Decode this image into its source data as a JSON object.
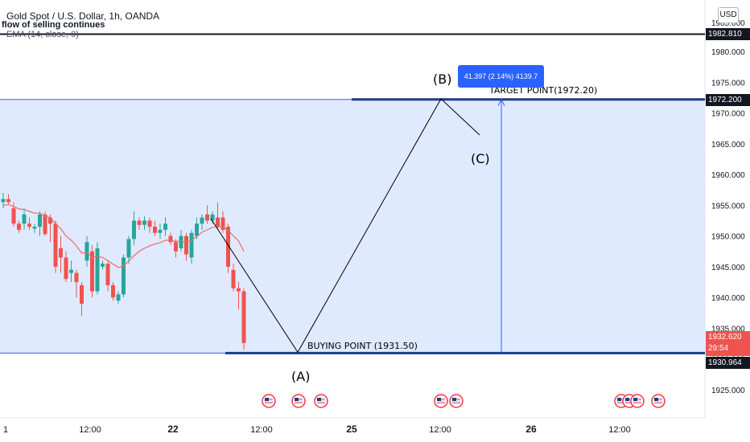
{
  "header": {
    "symbol_line": "Gold Spot / U.S. Dollar, 1h, OANDA",
    "note_line": "flow of selling continues",
    "indicator_line": "EMA (14, close, 0)",
    "currency_button": "USD"
  },
  "colors": {
    "up": "#26a69a",
    "down": "#ef5350",
    "ema": "#f06a6a",
    "zone_fill": "#dbe6ff",
    "zone_border": "#2962ff",
    "level_line": "#131722",
    "label_blue": "#2962ff",
    "label_red": "#ef5350"
  },
  "price_axis": {
    "ticks": [
      "1925.000",
      "1930.000",
      "1935.000",
      "1940.000",
      "1945.000",
      "1950.000",
      "1955.000",
      "1960.000",
      "1965.000",
      "1970.000",
      "1975.000",
      "1980.000"
    ],
    "top_label": "1985.000",
    "markers": {
      "resistance": "1982.810",
      "target": "1972.200",
      "current_price": "1932.620",
      "countdown": "29:54",
      "support": "1930.964"
    }
  },
  "time_axis": [
    "1",
    "12:00",
    "22",
    "12:00",
    "25",
    "12:00",
    "26",
    "12:00"
  ],
  "annotations": {
    "point_a": "(A)",
    "point_b": "(B)",
    "point_c": "(C)",
    "buying_point": "BUYING POINT (1931.50)",
    "target_point": "TARGET POINT(1972.20)",
    "measure_label": "41.397 (2.14%) 4139.7"
  },
  "events": {
    "icon": "us-flag-event-icon",
    "count": 9
  },
  "chart_data": {
    "type": "candlestick",
    "title": "Gold Spot / U.S. Dollar, 1h, OANDA",
    "candles": [
      {
        "o": 1955.5,
        "h": 1957.0,
        "l": 1954.5,
        "c": 1956.0
      },
      {
        "o": 1956.0,
        "h": 1956.8,
        "l": 1955.2,
        "c": 1955.5
      },
      {
        "o": 1954.5,
        "h": 1955.5,
        "l": 1951.5,
        "c": 1952.0
      },
      {
        "o": 1952.0,
        "h": 1952.5,
        "l": 1950.5,
        "c": 1951.0
      },
      {
        "o": 1952.0,
        "h": 1954.5,
        "l": 1951.0,
        "c": 1953.5
      },
      {
        "o": 1952.0,
        "h": 1953.0,
        "l": 1951.0,
        "c": 1951.5
      },
      {
        "o": 1951.2,
        "h": 1952.0,
        "l": 1950.5,
        "c": 1951.5
      },
      {
        "o": 1951.5,
        "h": 1954.0,
        "l": 1950.0,
        "c": 1953.5
      },
      {
        "o": 1953.5,
        "h": 1954.0,
        "l": 1950.0,
        "c": 1950.3
      },
      {
        "o": 1953.0,
        "h": 1953.5,
        "l": 1949.0,
        "c": 1952.0
      },
      {
        "o": 1952.0,
        "h": 1952.5,
        "l": 1944.0,
        "c": 1945.0
      },
      {
        "o": 1948.0,
        "h": 1950.0,
        "l": 1944.0,
        "c": 1946.5
      },
      {
        "o": 1946.5,
        "h": 1947.5,
        "l": 1942.5,
        "c": 1943.0
      },
      {
        "o": 1944.0,
        "h": 1946.0,
        "l": 1942.5,
        "c": 1944.5
      },
      {
        "o": 1944.0,
        "h": 1944.5,
        "l": 1940.0,
        "c": 1942.5
      },
      {
        "o": 1942.0,
        "h": 1942.5,
        "l": 1937.0,
        "c": 1939.0
      },
      {
        "o": 1946.0,
        "h": 1950.0,
        "l": 1945.0,
        "c": 1949.0
      },
      {
        "o": 1947.5,
        "h": 1948.5,
        "l": 1940.0,
        "c": 1941.0
      },
      {
        "o": 1941.0,
        "h": 1949.0,
        "l": 1940.5,
        "c": 1948.0
      },
      {
        "o": 1945.0,
        "h": 1946.0,
        "l": 1944.5,
        "c": 1945.5
      },
      {
        "o": 1945.5,
        "h": 1946.0,
        "l": 1941.0,
        "c": 1942.0
      },
      {
        "o": 1942.0,
        "h": 1942.5,
        "l": 1939.5,
        "c": 1940.0
      },
      {
        "o": 1939.5,
        "h": 1941.0,
        "l": 1939.0,
        "c": 1940.5
      },
      {
        "o": 1940.5,
        "h": 1947.0,
        "l": 1940.0,
        "c": 1946.5
      },
      {
        "o": 1946.5,
        "h": 1950.0,
        "l": 1945.5,
        "c": 1949.5
      },
      {
        "o": 1949.5,
        "h": 1954.0,
        "l": 1948.5,
        "c": 1952.5
      },
      {
        "o": 1952.5,
        "h": 1953.0,
        "l": 1951.0,
        "c": 1951.8
      },
      {
        "o": 1951.8,
        "h": 1953.2,
        "l": 1951.0,
        "c": 1952.5
      },
      {
        "o": 1952.5,
        "h": 1953.0,
        "l": 1950.5,
        "c": 1951.5
      },
      {
        "o": 1951.5,
        "h": 1952.5,
        "l": 1950.0,
        "c": 1950.5
      },
      {
        "o": 1950.5,
        "h": 1952.0,
        "l": 1949.5,
        "c": 1951.0
      },
      {
        "o": 1951.0,
        "h": 1953.0,
        "l": 1950.0,
        "c": 1952.0
      },
      {
        "o": 1950.0,
        "h": 1950.5,
        "l": 1948.5,
        "c": 1949.0
      },
      {
        "o": 1949.0,
        "h": 1949.5,
        "l": 1946.5,
        "c": 1947.5
      },
      {
        "o": 1948.0,
        "h": 1951.0,
        "l": 1947.5,
        "c": 1950.0
      },
      {
        "o": 1950.0,
        "h": 1950.5,
        "l": 1946.0,
        "c": 1947.0
      },
      {
        "o": 1946.5,
        "h": 1951.0,
        "l": 1945.5,
        "c": 1950.5
      },
      {
        "o": 1950.0,
        "h": 1953.0,
        "l": 1949.5,
        "c": 1952.0
      },
      {
        "o": 1952.0,
        "h": 1953.5,
        "l": 1951.0,
        "c": 1953.0
      },
      {
        "o": 1953.5,
        "h": 1955.0,
        "l": 1952.0,
        "c": 1952.5
      },
      {
        "o": 1952.5,
        "h": 1954.0,
        "l": 1952.0,
        "c": 1953.5
      },
      {
        "o": 1953.0,
        "h": 1955.5,
        "l": 1951.0,
        "c": 1951.5
      },
      {
        "o": 1953.0,
        "h": 1954.0,
        "l": 1950.5,
        "c": 1951.0
      },
      {
        "o": 1951.5,
        "h": 1952.0,
        "l": 1944.0,
        "c": 1945.0
      },
      {
        "o": 1944.5,
        "h": 1945.5,
        "l": 1941.0,
        "c": 1941.5
      },
      {
        "o": 1941.5,
        "h": 1942.5,
        "l": 1938.0,
        "c": 1941.0
      },
      {
        "o": 1941.0,
        "h": 1941.5,
        "l": 1931.5,
        "c": 1932.6
      }
    ],
    "ema": [
      1955.0,
      1955.1,
      1954.8,
      1954.4,
      1954.3,
      1954.0,
      1953.7,
      1953.7,
      1953.2,
      1953.0,
      1952.0,
      1951.2,
      1950.0,
      1949.3,
      1948.4,
      1947.2,
      1947.4,
      1946.5,
      1946.7,
      1946.5,
      1946.0,
      1945.4,
      1944.9,
      1945.1,
      1945.9,
      1946.8,
      1947.5,
      1948.0,
      1948.4,
      1948.7,
      1948.9,
      1949.3,
      1949.3,
      1949.1,
      1949.2,
      1949.0,
      1949.3,
      1949.9,
      1950.6,
      1951.0,
      1951.4,
      1951.5,
      1951.5,
      1950.9,
      1950.0,
      1949.2,
      1947.5
    ],
    "ylim": [
      1922,
      1988
    ],
    "ylabel": "USD"
  }
}
